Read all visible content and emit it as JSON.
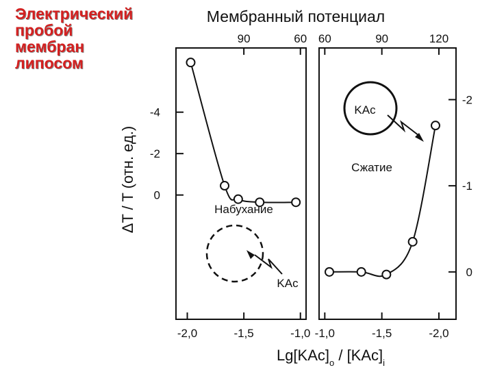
{
  "slide": {
    "title_lines": [
      "Электрический",
      "пробой",
      "мембран",
      "липосом"
    ],
    "title_color": "#d42020"
  },
  "chart_data": {
    "type": "scatter",
    "top_axis_label": "Мембранный потенциал",
    "xlabel": "Lg[KAc]o / [KAc]i",
    "ylabel": "ΔT / T (отн. ед.)",
    "panels": [
      {
        "name": "left",
        "x_ticks": [
          "-2,0",
          "-1,5",
          "-1,0"
        ],
        "x_tick_values": [
          -2.0,
          -1.5,
          -1.0
        ],
        "xlim": [
          -2.1,
          -0.95
        ],
        "top_ticks": [
          "90",
          "60"
        ],
        "top_tick_values": [
          -1.5,
          -1.0
        ],
        "y_ticks": [
          "-4",
          "-2",
          "0"
        ],
        "y_tick_values": [
          -4,
          -2,
          0
        ],
        "ylim": [
          6.0,
          -7.1
        ],
        "annotation": "Набухание",
        "circle_label": "KAc",
        "circle_style": "dashed",
        "points": [
          {
            "x": -1.97,
            "y": -6.4
          },
          {
            "x": -1.67,
            "y": -0.45
          },
          {
            "x": -1.55,
            "y": 0.2
          },
          {
            "x": -1.36,
            "y": 0.35
          },
          {
            "x": -1.04,
            "y": 0.35
          }
        ]
      },
      {
        "name": "right",
        "x_ticks": [
          "-1,0",
          "-1,5",
          "-2,0"
        ],
        "x_tick_values": [
          -1.0,
          -1.5,
          -2.0
        ],
        "xlim": [
          -0.95,
          -2.15
        ],
        "top_ticks": [
          "60",
          "90",
          "120"
        ],
        "top_tick_values": [
          -1.0,
          -1.5,
          -2.0
        ],
        "y_ticks": [
          "0",
          "-1",
          "-2"
        ],
        "y_tick_values": [
          0,
          -1,
          -2
        ],
        "ylim": [
          0.55,
          -2.6
        ],
        "annotation": "Сжатие",
        "circle_label": "KAc",
        "circle_style": "solid",
        "points": [
          {
            "x": -1.04,
            "y": 0.0
          },
          {
            "x": -1.32,
            "y": 0.0
          },
          {
            "x": -1.54,
            "y": 0.03
          },
          {
            "x": -1.77,
            "y": -0.35
          },
          {
            "x": -1.97,
            "y": -1.7
          }
        ]
      }
    ]
  }
}
